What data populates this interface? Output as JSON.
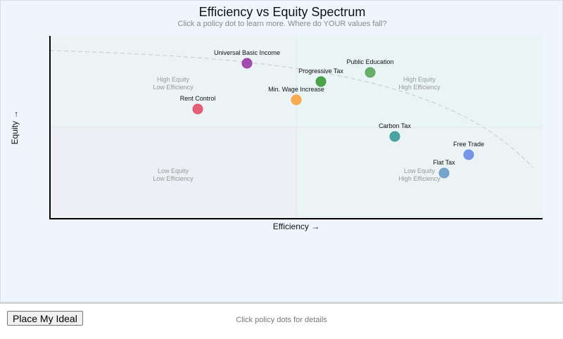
{
  "header": {
    "title": "Efficiency vs Equity Spectrum",
    "subtitle": "Click a policy dot to learn more. Where do YOUR values fall?"
  },
  "footer": {
    "button_label": "Place My Ideal",
    "status": "Click policy dots for details"
  },
  "chart_data": {
    "type": "scatter",
    "title": "Efficiency vs Equity Spectrum",
    "subtitle": "Click a policy dot to learn more. Where do YOUR values fall?",
    "xlabel": "Efficiency →",
    "ylabel": "Equity →",
    "xlim": [
      0,
      100
    ],
    "ylim": [
      0,
      100
    ],
    "grid": false,
    "legend": null,
    "quadrant_labels": [
      {
        "text": [
          "High Equity",
          "Low Efficiency"
        ],
        "x": 25,
        "y": 75
      },
      {
        "text": [
          "High Equity",
          "High Efficiency"
        ],
        "x": 75,
        "y": 75
      },
      {
        "text": [
          "Low Equity",
          "Low Efficiency"
        ],
        "x": 25,
        "y": 25
      },
      {
        "text": [
          "Low Equity",
          "High Efficiency"
        ],
        "x": 75,
        "y": 25
      }
    ],
    "frontier_curve": {
      "style": "dashed",
      "description": "trade-off frontier",
      "from": [
        0,
        92
      ],
      "to": [
        98,
        28
      ]
    },
    "points": [
      {
        "label": "Universal Basic Income",
        "x": 40,
        "y": 85,
        "color": "#9b3ba6"
      },
      {
        "label": "Progressive Tax",
        "x": 55,
        "y": 75,
        "color": "#3a9a3a"
      },
      {
        "label": "Public Education",
        "x": 65,
        "y": 80,
        "color": "#5aa85a"
      },
      {
        "label": "Rent Control",
        "x": 30,
        "y": 60,
        "color": "#e2506a"
      },
      {
        "label": "Min. Wage Increase",
        "x": 50,
        "y": 65,
        "color": "#f9a23c"
      },
      {
        "label": "Carbon Tax",
        "x": 70,
        "y": 45,
        "color": "#3a9a98"
      },
      {
        "label": "Free Trade",
        "x": 85,
        "y": 35,
        "color": "#6b8ce8"
      },
      {
        "label": "Flat Tax",
        "x": 80,
        "y": 25,
        "color": "#6c9cc8"
      }
    ]
  }
}
